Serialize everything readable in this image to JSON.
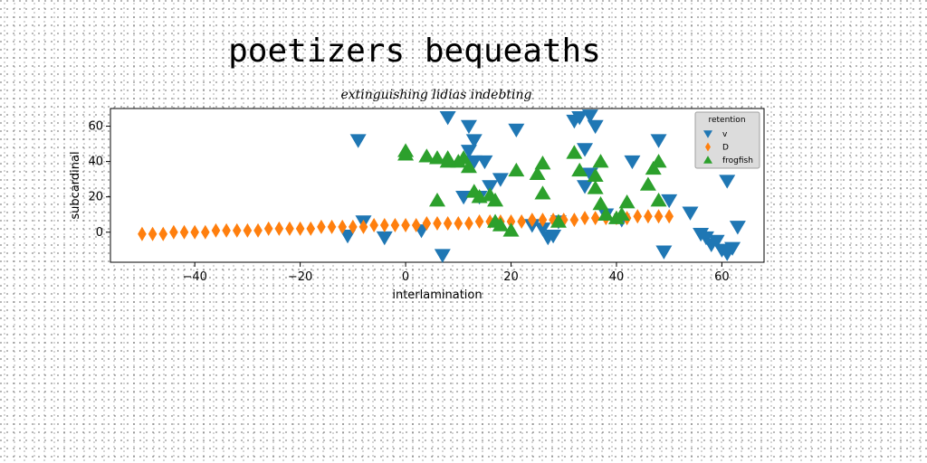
{
  "chart_data": {
    "type": "scatter",
    "title": "poetizers bequeaths",
    "subtitle": "extinguishing lidias indebting",
    "xlabel": "interlamination",
    "ylabel": "subcardinal",
    "xlim": [
      -56,
      68
    ],
    "ylim": [
      -17,
      70
    ],
    "xticks": [
      -40,
      -20,
      0,
      20,
      40,
      60
    ],
    "yticks": [
      0,
      20,
      40,
      60
    ],
    "grid": false,
    "legend": {
      "title": "retention",
      "placement": "upper right"
    },
    "series": [
      {
        "name": "v",
        "marker": "triangle-down",
        "color": "#1f77b4",
        "points": [
          [
            -9,
            52
          ],
          [
            -8,
            6
          ],
          [
            -11,
            -2
          ],
          [
            -4,
            -3
          ],
          [
            3,
            1
          ],
          [
            7,
            -13
          ],
          [
            8,
            65
          ],
          [
            11,
            20
          ],
          [
            12,
            60
          ],
          [
            12,
            46
          ],
          [
            13,
            52
          ],
          [
            13,
            40
          ],
          [
            14,
            20
          ],
          [
            15,
            40
          ],
          [
            16,
            26
          ],
          [
            18,
            30
          ],
          [
            21,
            58
          ],
          [
            24,
            4
          ],
          [
            26,
            2
          ],
          [
            27,
            -3
          ],
          [
            28,
            -2
          ],
          [
            29,
            6
          ],
          [
            32,
            63
          ],
          [
            33,
            65
          ],
          [
            34,
            47
          ],
          [
            34,
            26
          ],
          [
            35,
            66
          ],
          [
            35,
            33
          ],
          [
            36,
            60
          ],
          [
            38,
            10
          ],
          [
            41,
            7
          ],
          [
            43,
            40
          ],
          [
            48,
            52
          ],
          [
            49,
            -11
          ],
          [
            50,
            18
          ],
          [
            54,
            11
          ],
          [
            56,
            -1
          ],
          [
            57,
            -3
          ],
          [
            58,
            -7
          ],
          [
            59,
            -5
          ],
          [
            60,
            -10
          ],
          [
            61,
            29
          ],
          [
            61,
            -12
          ],
          [
            62,
            -9
          ],
          [
            63,
            3
          ]
        ]
      },
      {
        "name": "D",
        "marker": "thin-diamond",
        "color": "#ff7f0e",
        "points": [
          [
            -50,
            -1
          ],
          [
            -48,
            -1
          ],
          [
            -46,
            -1
          ],
          [
            -44,
            0
          ],
          [
            -42,
            0
          ],
          [
            -40,
            0
          ],
          [
            -38,
            0
          ],
          [
            -36,
            1
          ],
          [
            -34,
            1
          ],
          [
            -32,
            1
          ],
          [
            -30,
            1
          ],
          [
            -28,
            1
          ],
          [
            -26,
            2
          ],
          [
            -24,
            2
          ],
          [
            -22,
            2
          ],
          [
            -20,
            2
          ],
          [
            -18,
            2
          ],
          [
            -16,
            3
          ],
          [
            -14,
            3
          ],
          [
            -12,
            3
          ],
          [
            -10,
            3
          ],
          [
            -8,
            3
          ],
          [
            -6,
            4
          ],
          [
            -4,
            4
          ],
          [
            -2,
            4
          ],
          [
            0,
            4
          ],
          [
            2,
            4
          ],
          [
            4,
            5
          ],
          [
            6,
            5
          ],
          [
            8,
            5
          ],
          [
            10,
            5
          ],
          [
            12,
            5
          ],
          [
            14,
            6
          ],
          [
            16,
            6
          ],
          [
            18,
            6
          ],
          [
            20,
            6
          ],
          [
            22,
            6
          ],
          [
            24,
            7
          ],
          [
            26,
            7
          ],
          [
            28,
            7
          ],
          [
            30,
            7
          ],
          [
            32,
            7
          ],
          [
            34,
            8
          ],
          [
            36,
            8
          ],
          [
            38,
            8
          ],
          [
            40,
            8
          ],
          [
            42,
            8
          ],
          [
            44,
            9
          ],
          [
            46,
            9
          ],
          [
            48,
            9
          ],
          [
            50,
            9
          ]
        ]
      },
      {
        "name": "frogfish",
        "marker": "triangle-up",
        "color": "#2ca02c",
        "points": [
          [
            0,
            46
          ],
          [
            0,
            44
          ],
          [
            4,
            43
          ],
          [
            6,
            42
          ],
          [
            6,
            18
          ],
          [
            8,
            42
          ],
          [
            8,
            40
          ],
          [
            10,
            40
          ],
          [
            11,
            42
          ],
          [
            12,
            37
          ],
          [
            13,
            23
          ],
          [
            14,
            20
          ],
          [
            16,
            21
          ],
          [
            17,
            18
          ],
          [
            17,
            6
          ],
          [
            18,
            4
          ],
          [
            20,
            1
          ],
          [
            21,
            35
          ],
          [
            25,
            33
          ],
          [
            26,
            39
          ],
          [
            26,
            22
          ],
          [
            29,
            6
          ],
          [
            32,
            45
          ],
          [
            33,
            35
          ],
          [
            36,
            32
          ],
          [
            36,
            25
          ],
          [
            37,
            40
          ],
          [
            37,
            16
          ],
          [
            38,
            10
          ],
          [
            40,
            8
          ],
          [
            41,
            10
          ],
          [
            42,
            17
          ],
          [
            46,
            27
          ],
          [
            47,
            36
          ],
          [
            48,
            40
          ],
          [
            48,
            18
          ]
        ]
      }
    ]
  }
}
